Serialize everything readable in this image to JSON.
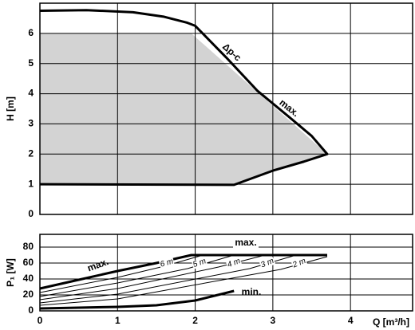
{
  "chart_data": [
    {
      "type": "line",
      "ylabel": "H [m]",
      "xlim": [
        0,
        4.8
      ],
      "xticks": [
        0,
        1,
        2,
        3,
        4
      ],
      "ylim": [
        0,
        7
      ],
      "yticks": [
        0,
        1,
        2,
        3,
        4,
        5,
        6
      ],
      "grid": true,
      "area": {
        "color": "#d3d3d3",
        "x": [
          0,
          0,
          1.95,
          3.7,
          3.0,
          2.5
        ],
        "values": [
          1.0,
          6.0,
          6.0,
          2.0,
          1.45,
          1.0
        ]
      },
      "series": [
        {
          "name": "max.",
          "color": "#000000",
          "width": 3,
          "x": [
            0,
            2.5,
            3.0,
            3.4,
            3.7,
            3.5,
            3.2,
            2.8,
            2.4,
            2.0,
            1.9,
            1.6,
            1.2,
            0.6,
            0
          ],
          "values": [
            1.0,
            0.98,
            1.45,
            1.75,
            2.0,
            2.6,
            3.25,
            4.1,
            5.2,
            6.25,
            6.35,
            6.55,
            6.7,
            6.77,
            6.75
          ]
        }
      ],
      "annotations": [
        "Δp-c"
      ]
    },
    {
      "type": "line",
      "xlabel": "Q [m³/h]",
      "ylabel": "P₁ [W]",
      "xlim": [
        0,
        4.8
      ],
      "xticks": [
        0,
        1,
        2,
        3,
        4
      ],
      "ylim": [
        0,
        96
      ],
      "yticks": [
        0,
        20,
        40,
        60,
        80
      ],
      "grid": true,
      "series": [
        {
          "name": "max.",
          "color": "#000000",
          "width": 3,
          "x": [
            0,
            0.5,
            1,
            1.5,
            1.95,
            3.7
          ],
          "values": [
            28,
            39,
            50,
            60,
            70,
            70
          ]
        },
        {
          "name": "min.",
          "color": "#000000",
          "width": 3,
          "x": [
            0,
            1,
            1.5,
            2,
            2.5
          ],
          "values": [
            3,
            5,
            7,
            13,
            25
          ]
        },
        {
          "name": "6 m",
          "color": "#000000",
          "width": 1,
          "x": [
            0,
            1,
            1.6,
            2.1
          ],
          "values": [
            23,
            42,
            56,
            70
          ]
        },
        {
          "name": "5 m",
          "color": "#000000",
          "width": 1,
          "x": [
            0,
            1,
            1.9,
            2.5
          ],
          "values": [
            18,
            35,
            53,
            70
          ]
        },
        {
          "name": "4 m",
          "color": "#000000",
          "width": 1,
          "x": [
            0,
            1,
            2.3,
            2.9
          ],
          "values": [
            14,
            28,
            55,
            70
          ]
        },
        {
          "name": "3 m",
          "color": "#000000",
          "width": 1,
          "x": [
            0,
            1,
            2.7,
            3.3
          ],
          "values": [
            10,
            21,
            53,
            70
          ]
        },
        {
          "name": "2 m",
          "color": "#000000",
          "width": 1,
          "x": [
            0,
            1,
            3.1,
            3.7
          ],
          "values": [
            7,
            15,
            52,
            68
          ]
        }
      ],
      "annotations": [
        "max."
      ]
    }
  ]
}
